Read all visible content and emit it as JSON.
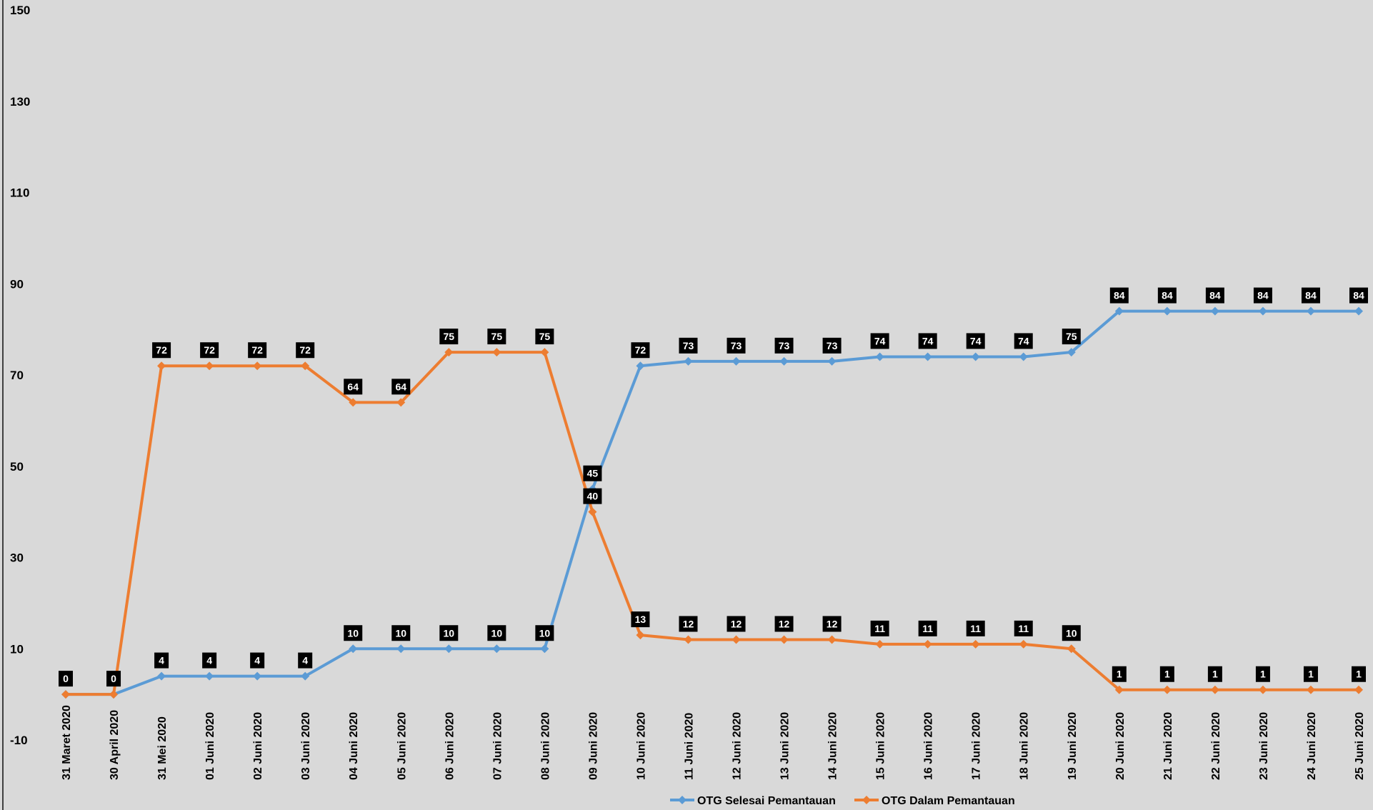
{
  "chart_data": {
    "type": "line",
    "title": "",
    "xlabel": "",
    "ylabel": "",
    "ylim": [
      -10,
      150
    ],
    "yticks": [
      -10,
      10,
      30,
      50,
      70,
      90,
      110,
      130,
      150
    ],
    "grid": false,
    "legend_position": "bottom",
    "categories": [
      "31 Maret 2020",
      "30 April 2020",
      "31 Mei 2020",
      "01 Juni 2020",
      "02 Juni 2020",
      "03 Juni 2020",
      "04 Juni 2020",
      "05 Juni 2020",
      "06 Juni 2020",
      "07 Juni 2020",
      "08 Juni 2020",
      "09 Juni 2020",
      "10 Juni 2020",
      "11 Juni 2020",
      "12 Juni 2020",
      "13 Juni 2020",
      "14 Juni 2020",
      "15 Juni 2020",
      "16 Juni 2020",
      "17 Juni 2020",
      "18 Juni 2020",
      "19 Juni 2020",
      "20 Juni 2020",
      "21 Juni 2020",
      "22 Juni 2020",
      "23 Juni 2020",
      "24 Juni 2020",
      "25 Juni 2020"
    ],
    "series": [
      {
        "name": "OTG Selesai Pemantauan",
        "color": "#5b9bd5",
        "marker": "diamond",
        "values": [
          0,
          0,
          4,
          4,
          4,
          4,
          10,
          10,
          10,
          10,
          10,
          45,
          72,
          73,
          73,
          73,
          73,
          74,
          74,
          74,
          74,
          75,
          84,
          84,
          84,
          84,
          84,
          84
        ]
      },
      {
        "name": "OTG Dalam Pemantauan",
        "color": "#ed7d31",
        "marker": "diamond",
        "values": [
          0,
          0,
          72,
          72,
          72,
          72,
          64,
          64,
          75,
          75,
          75,
          40,
          13,
          12,
          12,
          12,
          12,
          11,
          11,
          11,
          11,
          10,
          1,
          1,
          1,
          1,
          1,
          1
        ]
      }
    ],
    "data_labels": {
      "OTG Selesai Pemantauan": [
        null,
        null,
        4,
        4,
        4,
        4,
        10,
        10,
        10,
        10,
        10,
        45,
        72,
        73,
        73,
        73,
        73,
        74,
        74,
        74,
        74,
        75,
        84,
        84,
        84,
        84,
        84,
        84
      ],
      "OTG Dalam Pemantauan": [
        0,
        0,
        72,
        72,
        72,
        72,
        64,
        64,
        75,
        75,
        75,
        40,
        13,
        12,
        12,
        12,
        12,
        11,
        11,
        11,
        11,
        10,
        1,
        1,
        1,
        1,
        1,
        1
      ]
    },
    "data_label_style": {
      "background": "#000000",
      "text_color": "#ffffff"
    },
    "plot_background": "#d9d9d9"
  }
}
